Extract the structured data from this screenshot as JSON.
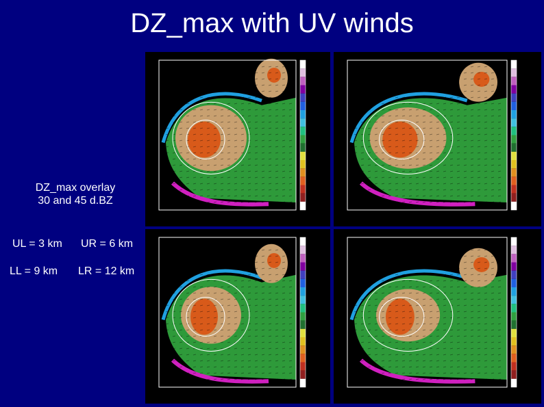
{
  "title": "DZ_max with UV winds",
  "captions": {
    "overlay_line1": "DZ_max overlay",
    "overlay_line2": "30 and 45 d.BZ",
    "ul": "UL = 3 km",
    "ur": "UR = 6 km",
    "ll": "LL = 9 km",
    "lr": "LR = 12 km"
  },
  "panels": [
    {
      "id": "ul",
      "height_km": 3
    },
    {
      "id": "ur",
      "height_km": 6
    },
    {
      "id": "ll",
      "height_km": 9
    },
    {
      "id": "lr",
      "height_km": 12
    }
  ],
  "colors": {
    "background": "#000080",
    "echo_green": "#2e9a3a",
    "echo_high": "#d85a1a",
    "echo_mid": "#c8a070",
    "edge_magenta": "#d020c0",
    "edge_cyan": "#20a0e0"
  }
}
